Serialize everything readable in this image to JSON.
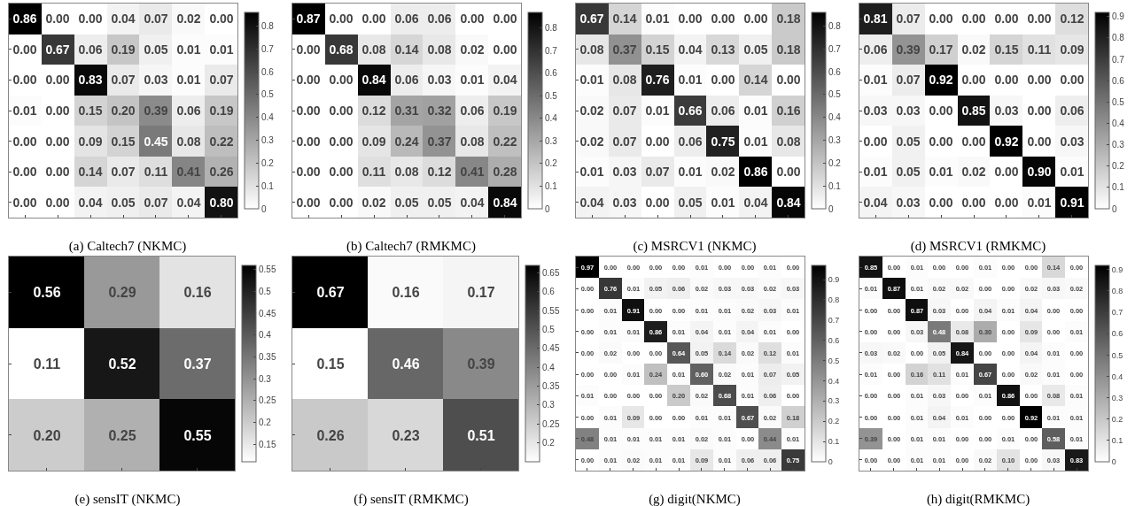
{
  "chart_data": [
    {
      "type": "heatmap",
      "title": "(a) Caltech7 (NKMC)",
      "categories": [
        null,
        null,
        null,
        null,
        null,
        null,
        null
      ],
      "y_categories": [
        null,
        null,
        null,
        null,
        null,
        null,
        null
      ],
      "cells": [
        [
          0.86,
          0,
          0,
          0.04,
          0.07,
          0.02,
          0
        ],
        [
          0,
          0.67,
          0.06,
          0.19,
          0.05,
          0.01,
          0.01
        ],
        [
          0,
          0,
          0.83,
          0.07,
          0.03,
          0.01,
          0.07
        ],
        [
          0.01,
          0,
          0.15,
          0.2,
          0.39,
          0.06,
          0.19
        ],
        [
          0,
          0,
          0.09,
          0.15,
          0.45,
          0.08,
          0.22
        ],
        [
          0,
          0,
          0.14,
          0.07,
          0.11,
          0.41,
          0.26
        ],
        [
          0,
          0,
          0.04,
          0.05,
          0.07,
          0.04,
          0.8
        ]
      ],
      "cell_labels": [
        [
          "0.86",
          "0.00",
          "0.00",
          "0.04",
          "0.07",
          "0.02",
          "0.00"
        ],
        [
          "0.00",
          "0.67",
          "0.06",
          "0.19",
          "0.05",
          "0.01",
          "0.01"
        ],
        [
          "0.00",
          "0.00",
          "0.83",
          "0.07",
          "0.03",
          "0.01",
          "0.07"
        ],
        [
          "0.01",
          "0.00",
          "0.15",
          "0.20",
          "0.39",
          "0.06",
          "0.19"
        ],
        [
          "0.00",
          "0.00",
          "0.09",
          "0.15",
          "0.45",
          "0.08",
          "0.22"
        ],
        [
          "0.00",
          "0.00",
          "0.14",
          "0.07",
          "0.11",
          "0.41",
          "0.26"
        ],
        [
          "0.00",
          "0.00",
          "0.04",
          "0.05",
          "0.07",
          "0.04",
          "0.80"
        ]
      ],
      "clim": [
        0,
        0.86
      ],
      "cticks": [
        0,
        0.1,
        0.2,
        0.3,
        0.4,
        0.5,
        0.6,
        0.7,
        0.8
      ]
    },
    {
      "type": "heatmap",
      "title": "(b) Caltech7 (RMKMC)",
      "categories": [
        null,
        null,
        null,
        null,
        null,
        null,
        null
      ],
      "y_categories": [
        null,
        null,
        null,
        null,
        null,
        null,
        null
      ],
      "cells": [
        [
          0.87,
          0,
          0,
          0.06,
          0.06,
          0,
          0
        ],
        [
          0,
          0.68,
          0.08,
          0.14,
          0.08,
          0.02,
          0
        ],
        [
          0,
          0,
          0.84,
          0.06,
          0.03,
          0.01,
          0.04
        ],
        [
          0,
          0,
          0.12,
          0.31,
          0.32,
          0.06,
          0.19
        ],
        [
          0,
          0,
          0.09,
          0.24,
          0.37,
          0.08,
          0.22
        ],
        [
          0,
          0,
          0.11,
          0.08,
          0.12,
          0.41,
          0.28
        ],
        [
          0,
          0,
          0.02,
          0.05,
          0.05,
          0.04,
          0.84
        ]
      ],
      "cell_labels": [
        [
          "0.87",
          "0.00",
          "0.00",
          "0.06",
          "0.06",
          "0.00",
          "0.00"
        ],
        [
          "0.00",
          "0.68",
          "0.08",
          "0.14",
          "0.08",
          "0.02",
          "0.00"
        ],
        [
          "0.00",
          "0.00",
          "0.84",
          "0.06",
          "0.03",
          "0.01",
          "0.04"
        ],
        [
          "0.00",
          "0.00",
          "0.12",
          "0.31",
          "0.32",
          "0.06",
          "0.19"
        ],
        [
          "0.00",
          "0.00",
          "0.09",
          "0.24",
          "0.37",
          "0.08",
          "0.22"
        ],
        [
          "0.00",
          "0.00",
          "0.11",
          "0.08",
          "0.12",
          "0.41",
          "0.28"
        ],
        [
          "0.00",
          "0.00",
          "0.02",
          "0.05",
          "0.05",
          "0.04",
          "0.84"
        ]
      ],
      "clim": [
        0,
        0.87
      ],
      "cticks": [
        0,
        0.1,
        0.2,
        0.3,
        0.4,
        0.5,
        0.6,
        0.7,
        0.8
      ]
    },
    {
      "type": "heatmap",
      "title": "(c) MSRCV1 (NKMC)",
      "categories": [
        null,
        null,
        null,
        null,
        null,
        null,
        null
      ],
      "y_categories": [
        null,
        null,
        null,
        null,
        null,
        null,
        null
      ],
      "cells": [
        [
          0.67,
          0.14,
          0.01,
          0,
          0,
          0,
          0.18
        ],
        [
          0.08,
          0.37,
          0.15,
          0.04,
          0.13,
          0.05,
          0.18
        ],
        [
          0.01,
          0.08,
          0.76,
          0.01,
          0,
          0.14,
          0
        ],
        [
          0.02,
          0.07,
          0.01,
          0.66,
          0.06,
          0.01,
          0.16
        ],
        [
          0.02,
          0.07,
          0,
          0.06,
          0.75,
          0.01,
          0.08
        ],
        [
          0.01,
          0.03,
          0.07,
          0.01,
          0.02,
          0.86,
          0
        ],
        [
          0.04,
          0.03,
          0,
          0.05,
          0.01,
          0.04,
          0.84
        ]
      ],
      "cell_labels": [
        [
          "0.67",
          "0.14",
          "0.01",
          "0.00",
          "0.00",
          "0.00",
          "0.18"
        ],
        [
          "0.08",
          "0.37",
          "0.15",
          "0.04",
          "0.13",
          "0.05",
          "0.18"
        ],
        [
          "0.01",
          "0.08",
          "0.76",
          "0.01",
          "0.00",
          "0.14",
          "0.00"
        ],
        [
          "0.02",
          "0.07",
          "0.01",
          "0.66",
          "0.06",
          "0.01",
          "0.16"
        ],
        [
          "0.02",
          "0.07",
          "0.00",
          "0.06",
          "0.75",
          "0.01",
          "0.08"
        ],
        [
          "0.01",
          "0.03",
          "0.07",
          "0.01",
          "0.02",
          "0.86",
          "0.00"
        ],
        [
          "0.04",
          "0.03",
          "0.00",
          "0.05",
          "0.01",
          "0.04",
          "0.84"
        ]
      ],
      "clim": [
        0,
        0.86
      ],
      "cticks": [
        0,
        0.1,
        0.2,
        0.3,
        0.4,
        0.5,
        0.6,
        0.7,
        0.8
      ]
    },
    {
      "type": "heatmap",
      "title": "(d) MSRCV1 (RMKMC)",
      "categories": [
        null,
        null,
        null,
        null,
        null,
        null,
        null
      ],
      "y_categories": [
        null,
        null,
        null,
        null,
        null,
        null,
        null
      ],
      "cells": [
        [
          0.81,
          0.07,
          0,
          0,
          0,
          0,
          0.12
        ],
        [
          0.06,
          0.39,
          0.17,
          0.02,
          0.15,
          0.11,
          0.09
        ],
        [
          0.01,
          0.07,
          0.92,
          0,
          0,
          0,
          0
        ],
        [
          0.03,
          0.03,
          0,
          0.85,
          0.03,
          0,
          0.06
        ],
        [
          0,
          0.05,
          0,
          0,
          0.92,
          0,
          0.03
        ],
        [
          0.01,
          0.05,
          0.01,
          0.02,
          0,
          0.9,
          0.01
        ],
        [
          0.04,
          0.03,
          0,
          0,
          0,
          0.01,
          0.91
        ]
      ],
      "cell_labels": [
        [
          "0.81",
          "0.07",
          "0.00",
          "0.00",
          "0.00",
          "0.00",
          "0.12"
        ],
        [
          "0.06",
          "0.39",
          "0.17",
          "0.02",
          "0.15",
          "0.11",
          "0.09"
        ],
        [
          "0.01",
          "0.07",
          "0.92",
          "0.00",
          "0.00",
          "0.00",
          "0.00"
        ],
        [
          "0.03",
          "0.03",
          "0.00",
          "0.85",
          "0.03",
          "0.00",
          "0.06"
        ],
        [
          "0.00",
          "0.05",
          "0.00",
          "0.00",
          "0.92",
          "0.00",
          "0.03"
        ],
        [
          "0.01",
          "0.05",
          "0.01",
          "0.02",
          "0.00",
          "0.90",
          "0.01"
        ],
        [
          "0.04",
          "0.03",
          "0.00",
          "0.00",
          "0.00",
          "0.01",
          "0.91"
        ]
      ],
      "clim": [
        0,
        0.92
      ],
      "cticks": [
        0,
        0.1,
        0.2,
        0.3,
        0.4,
        0.5,
        0.6,
        0.7,
        0.8,
        0.9
      ]
    },
    {
      "type": "heatmap",
      "title": "(e) sensIT (NKMC)",
      "categories": [
        null,
        null,
        null
      ],
      "y_categories": [
        null,
        null,
        null
      ],
      "cells": [
        [
          0.56,
          0.29,
          0.16
        ],
        [
          0.11,
          0.52,
          0.37
        ],
        [
          0.2,
          0.25,
          0.55
        ]
      ],
      "cell_labels": [
        [
          "0.56",
          "0.29",
          "0.16"
        ],
        [
          "0.11",
          "0.52",
          "0.37"
        ],
        [
          "0.20",
          "0.25",
          "0.55"
        ]
      ],
      "clim": [
        0.11,
        0.56
      ],
      "cticks": [
        0.15,
        0.2,
        0.25,
        0.3,
        0.35,
        0.4,
        0.45,
        0.5,
        0.55
      ]
    },
    {
      "type": "heatmap",
      "title": "(f) sensIT (RMKMC)",
      "categories": [
        null,
        null,
        null
      ],
      "y_categories": [
        null,
        null,
        null
      ],
      "cells": [
        [
          0.67,
          0.16,
          0.17
        ],
        [
          0.15,
          0.46,
          0.39
        ],
        [
          0.26,
          0.23,
          0.51
        ]
      ],
      "cell_labels": [
        [
          "0.67",
          "0.16",
          "0.17"
        ],
        [
          "0.15",
          "0.46",
          "0.39"
        ],
        [
          "0.26",
          "0.23",
          "0.51"
        ]
      ],
      "clim": [
        0.15,
        0.67
      ],
      "cticks": [
        0.2,
        0.25,
        0.3,
        0.35,
        0.4,
        0.45,
        0.5,
        0.55,
        0.6,
        0.65
      ]
    },
    {
      "type": "heatmap",
      "title": "(g) digit(NKMC)",
      "categories": [
        null,
        null,
        null,
        null,
        null,
        null,
        null,
        null,
        null,
        null
      ],
      "y_categories": [
        null,
        null,
        null,
        null,
        null,
        null,
        null,
        null,
        null,
        null
      ],
      "cells": [
        [
          0.97,
          0,
          0,
          0,
          0,
          0.01,
          0,
          0,
          0.01,
          0
        ],
        [
          0,
          0.76,
          0.01,
          0.05,
          0.06,
          0.02,
          0.03,
          0.03,
          0.02,
          0.03
        ],
        [
          0,
          0.01,
          0.91,
          0,
          0,
          0.01,
          0.01,
          0.02,
          0.03,
          0.01
        ],
        [
          0,
          0.01,
          0.01,
          0.86,
          0.01,
          0.04,
          0.01,
          0.04,
          0.01,
          0
        ],
        [
          0,
          0.02,
          0,
          0,
          0.64,
          0.05,
          0.14,
          0.02,
          0.12,
          0.01
        ],
        [
          0,
          0,
          0.01,
          0.24,
          0.01,
          0.6,
          0.02,
          0.01,
          0.07,
          0.05
        ],
        [
          0.01,
          0,
          0,
          0,
          0.2,
          0.02,
          0.68,
          0.01,
          0.06,
          0
        ],
        [
          0,
          0.01,
          0.09,
          0,
          0,
          0.01,
          0.01,
          0.67,
          0.02,
          0.18
        ],
        [
          0.48,
          0.01,
          0.01,
          0.01,
          0.01,
          0.02,
          0.01,
          0,
          0.44,
          0.01
        ],
        [
          0,
          0.01,
          0.02,
          0.01,
          0.01,
          0.09,
          0.01,
          0.06,
          0.06,
          0.75
        ]
      ],
      "cell_labels": [
        [
          "0.97",
          "0.00",
          "0.00",
          "0.00",
          "0.00",
          "0.01",
          "0.00",
          "0.00",
          "0.01",
          "0.00"
        ],
        [
          "0.00",
          "0.76",
          "0.01",
          "0.05",
          "0.06",
          "0.02",
          "0.03",
          "0.03",
          "0.02",
          "0.03"
        ],
        [
          "0.00",
          "0.01",
          "0.91",
          "0.00",
          "0.00",
          "0.01",
          "0.01",
          "0.02",
          "0.03",
          "0.01"
        ],
        [
          "0.00",
          "0.01",
          "0.01",
          "0.86",
          "0.01",
          "0.04",
          "0.01",
          "0.04",
          "0.01",
          "0.00"
        ],
        [
          "0.00",
          "0.02",
          "0.00",
          "0.00",
          "0.64",
          "0.05",
          "0.14",
          "0.02",
          "0.12",
          "0.01"
        ],
        [
          "0.00",
          "0.00",
          "0.01",
          "0.24",
          "0.01",
          "0.60",
          "0.02",
          "0.01",
          "0.07",
          "0.05"
        ],
        [
          "0.01",
          "0.00",
          "0.00",
          "0.00",
          "0.20",
          "0.02",
          "0.68",
          "0.01",
          "0.06",
          "0.00"
        ],
        [
          "0.00",
          "0.01",
          "0.09",
          "0.00",
          "0.00",
          "0.01",
          "0.01",
          "0.67",
          "0.02",
          "0.18"
        ],
        [
          "0.48",
          "0.01",
          "0.01",
          "0.01",
          "0.01",
          "0.02",
          "0.01",
          "0.00",
          "0.44",
          "0.01"
        ],
        [
          "0.00",
          "0.01",
          "0.02",
          "0.01",
          "0.01",
          "0.09",
          "0.01",
          "0.06",
          "0.06",
          "0.75"
        ]
      ],
      "clim": [
        0,
        0.97
      ],
      "cticks": [
        0,
        0.1,
        0.2,
        0.3,
        0.4,
        0.5,
        0.6,
        0.7,
        0.8,
        0.9
      ]
    },
    {
      "type": "heatmap",
      "title": "(h) digit(RMKMC)",
      "categories": [
        null,
        null,
        null,
        null,
        null,
        null,
        null,
        null,
        null,
        null
      ],
      "y_categories": [
        null,
        null,
        null,
        null,
        null,
        null,
        null,
        null,
        null,
        null
      ],
      "cells": [
        [
          0.85,
          0,
          0.01,
          0,
          0,
          0.01,
          0,
          0,
          0.14,
          0
        ],
        [
          0.01,
          0.87,
          0.01,
          0.02,
          0.02,
          0,
          0,
          0.02,
          0.03,
          0.02
        ],
        [
          0,
          0,
          0.87,
          0.03,
          0,
          0.04,
          0.01,
          0.04,
          0,
          0
        ],
        [
          0,
          0,
          0.03,
          0.48,
          0.08,
          0.3,
          0,
          0.09,
          0,
          0.01
        ],
        [
          0.03,
          0.02,
          0,
          0.05,
          0.84,
          0,
          0,
          0.04,
          0.01,
          0
        ],
        [
          0.01,
          0,
          0.16,
          0.11,
          0.01,
          0.67,
          0,
          0.02,
          0.01,
          0
        ],
        [
          0,
          0,
          0.01,
          0.03,
          0,
          0.01,
          0.86,
          0,
          0.08,
          0.01
        ],
        [
          0,
          0,
          0.01,
          0.04,
          0.01,
          0,
          0,
          0.92,
          0.01,
          0.01
        ],
        [
          0.39,
          0,
          0.01,
          0.01,
          0,
          0,
          0.01,
          0,
          0.58,
          0.01
        ],
        [
          0,
          0,
          0.01,
          0.01,
          0,
          0.02,
          0.1,
          0,
          0.03,
          0.83
        ]
      ],
      "cell_labels": [
        [
          "0.85",
          "0.00",
          "0.01",
          "0.00",
          "0.00",
          "0.01",
          "0.00",
          "0.00",
          "0.14",
          "0.00"
        ],
        [
          "0.01",
          "0.87",
          "0.01",
          "0.02",
          "0.02",
          "0.00",
          "0.00",
          "0.02",
          "0.03",
          "0.02"
        ],
        [
          "0.00",
          "0.00",
          "0.87",
          "0.03",
          "0.00",
          "0.04",
          "0.01",
          "0.04",
          "0.00",
          "0.00"
        ],
        [
          "0.00",
          "0.00",
          "0.03",
          "0.48",
          "0.08",
          "0.30",
          "0.00",
          "0.09",
          "0.00",
          "0.01"
        ],
        [
          "0.03",
          "0.02",
          "0.00",
          "0.05",
          "0.84",
          "0.00",
          "0.00",
          "0.04",
          "0.01",
          "0.00"
        ],
        [
          "0.01",
          "0.00",
          "0.16",
          "0.11",
          "0.01",
          "0.67",
          "0.00",
          "0.02",
          "0.01",
          "0.00"
        ],
        [
          "0.00",
          "0.00",
          "0.01",
          "0.03",
          "0.00",
          "0.01",
          "0.86",
          "0.00",
          "0.08",
          "0.01"
        ],
        [
          "0.00",
          "0.00",
          "0.01",
          "0.04",
          "0.01",
          "0.00",
          "0.00",
          "0.92",
          "0.01",
          "0.01"
        ],
        [
          "0.39",
          "0.00",
          "0.01",
          "0.01",
          "0.00",
          "0.00",
          "0.01",
          "0.00",
          "0.58",
          "0.01"
        ],
        [
          "0.00",
          "0.00",
          "0.01",
          "0.01",
          "0.00",
          "0.02",
          "0.10",
          "0.00",
          "0.03",
          "0.83"
        ]
      ],
      "clim": [
        0,
        0.92
      ],
      "cticks": [
        0,
        0.1,
        0.2,
        0.3,
        0.4,
        0.5,
        0.6,
        0.7,
        0.8,
        0.9
      ]
    }
  ]
}
